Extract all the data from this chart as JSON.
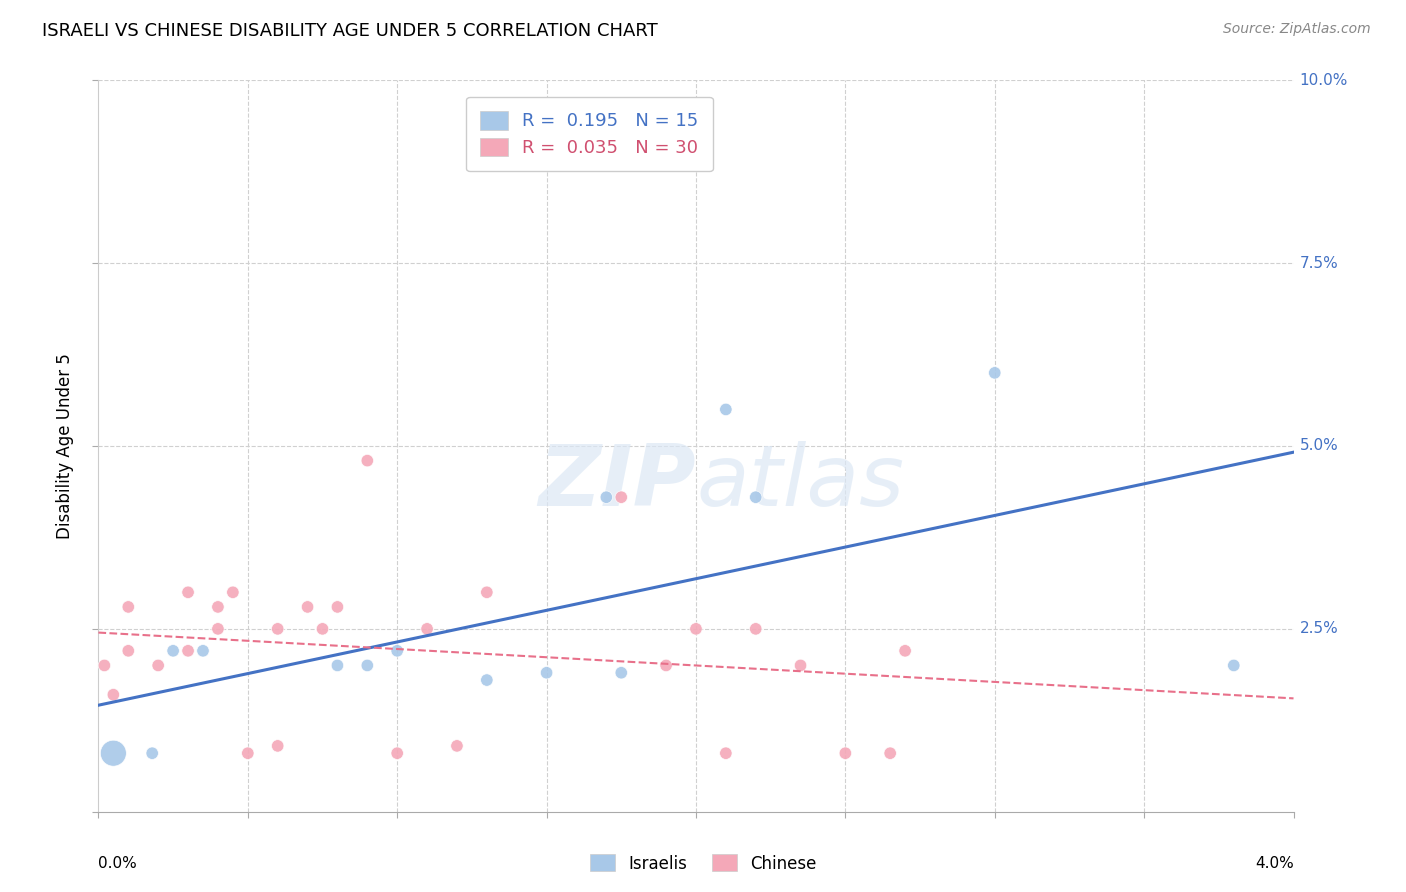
{
  "title": "ISRAELI VS CHINESE DISABILITY AGE UNDER 5 CORRELATION CHART",
  "source": "Source: ZipAtlas.com",
  "ylabel": "Disability Age Under 5",
  "xlim": [
    0.0,
    0.04
  ],
  "ylim": [
    0.0,
    0.1
  ],
  "watermark": "ZIPatlas",
  "israeli_R": 0.195,
  "israeli_N": 15,
  "chinese_R": 0.035,
  "chinese_N": 30,
  "israeli_color": "#a8c8e8",
  "chinese_color": "#f4a8b8",
  "israeli_line_color": "#4472c4",
  "chinese_line_color": "#e8708a",
  "israeli_points": [
    [
      0.0005,
      0.008
    ],
    [
      0.0018,
      0.008
    ],
    [
      0.0025,
      0.022
    ],
    [
      0.0035,
      0.022
    ],
    [
      0.008,
      0.02
    ],
    [
      0.009,
      0.02
    ],
    [
      0.01,
      0.022
    ],
    [
      0.013,
      0.018
    ],
    [
      0.015,
      0.019
    ],
    [
      0.017,
      0.043
    ],
    [
      0.0175,
      0.019
    ],
    [
      0.021,
      0.055
    ],
    [
      0.022,
      0.043
    ],
    [
      0.03,
      0.06
    ],
    [
      0.038,
      0.02
    ]
  ],
  "israeli_sizes": [
    350,
    80,
    80,
    80,
    80,
    80,
    80,
    80,
    80,
    80,
    80,
    80,
    80,
    80,
    80
  ],
  "chinese_points": [
    [
      0.0002,
      0.02
    ],
    [
      0.0005,
      0.016
    ],
    [
      0.001,
      0.022
    ],
    [
      0.001,
      0.028
    ],
    [
      0.002,
      0.02
    ],
    [
      0.003,
      0.03
    ],
    [
      0.003,
      0.022
    ],
    [
      0.004,
      0.028
    ],
    [
      0.004,
      0.025
    ],
    [
      0.0045,
      0.03
    ],
    [
      0.005,
      0.008
    ],
    [
      0.006,
      0.025
    ],
    [
      0.006,
      0.009
    ],
    [
      0.007,
      0.028
    ],
    [
      0.0075,
      0.025
    ],
    [
      0.008,
      0.028
    ],
    [
      0.009,
      0.048
    ],
    [
      0.01,
      0.008
    ],
    [
      0.011,
      0.025
    ],
    [
      0.012,
      0.009
    ],
    [
      0.013,
      0.03
    ],
    [
      0.0175,
      0.043
    ],
    [
      0.019,
      0.02
    ],
    [
      0.02,
      0.025
    ],
    [
      0.021,
      0.008
    ],
    [
      0.022,
      0.025
    ],
    [
      0.0235,
      0.02
    ],
    [
      0.025,
      0.008
    ],
    [
      0.0265,
      0.008
    ],
    [
      0.027,
      0.022
    ]
  ],
  "chinese_sizes": [
    80,
    80,
    80,
    80,
    80,
    80,
    80,
    80,
    80,
    80,
    80,
    80,
    80,
    80,
    80,
    80,
    80,
    80,
    80,
    80,
    80,
    80,
    80,
    80,
    80,
    80,
    80,
    80,
    80,
    80
  ]
}
